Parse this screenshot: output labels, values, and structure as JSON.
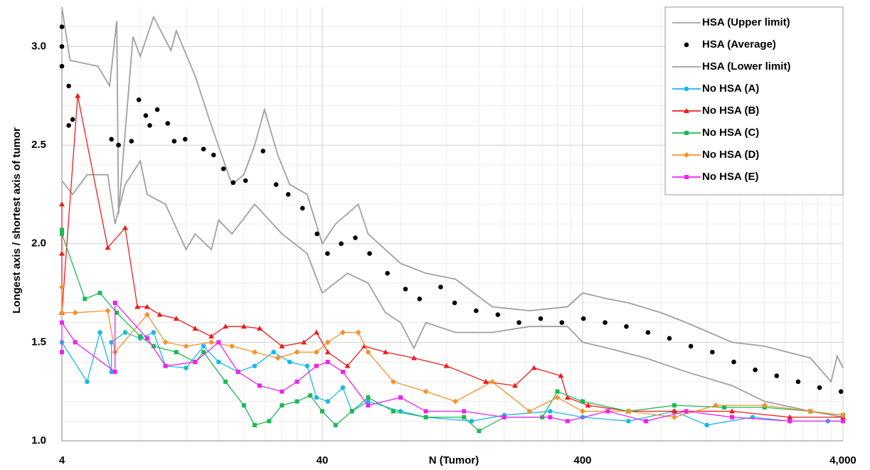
{
  "chart_data": {
    "type": "line",
    "x_label": "N (Tumor)",
    "y_label": "Longest axis / shortest axis of tumor",
    "xscale": "log",
    "grid": true,
    "minor_grid": true,
    "legend": "upper right",
    "xlim": [
      4,
      4000
    ],
    "xticks": [
      4,
      40,
      400,
      {
        "value": 4000,
        "label": "4,000"
      }
    ],
    "ylim": [
      1.0,
      3.2
    ],
    "yticks": [
      {
        "value": 1.0,
        "label": "1.0"
      },
      {
        "value": 1.5,
        "label": "1.5"
      },
      {
        "value": 2.0,
        "label": "2.0"
      },
      {
        "value": 2.5,
        "label": "2.5"
      },
      {
        "value": 3.0,
        "label": "3.0"
      }
    ],
    "series": [
      {
        "name": "HSA (Upper limit)",
        "color": "#a0a0a0",
        "marker": "none",
        "line": true,
        "x": [
          4,
          4.3,
          5.5,
          6.1,
          6.5,
          6.6,
          7.5,
          8,
          9,
          10.5,
          11,
          13,
          15,
          18,
          20,
          22,
          24,
          27,
          30,
          35,
          40,
          45,
          55,
          60,
          80,
          100,
          130,
          180,
          250,
          350,
          400,
          500,
          600,
          800,
          1000,
          1500,
          2000,
          3000,
          3600,
          3800,
          4000
        ],
        "values": [
          3.2,
          2.93,
          2.9,
          2.8,
          3.13,
          2.15,
          3.05,
          2.95,
          3.15,
          2.98,
          3.08,
          2.85,
          2.6,
          2.3,
          2.35,
          2.5,
          2.68,
          2.45,
          2.3,
          2.25,
          2.0,
          2.1,
          2.2,
          2.05,
          1.9,
          1.85,
          1.82,
          1.68,
          1.66,
          1.68,
          1.75,
          1.72,
          1.7,
          1.65,
          1.6,
          1.5,
          1.48,
          1.42,
          1.3,
          1.43,
          1.37
        ]
      },
      {
        "name": "HSA (Average)",
        "color": "#000000",
        "marker": "circle",
        "line": false,
        "x": [
          4,
          4,
          4,
          4.25,
          4.25,
          4.4,
          6.2,
          6.6,
          7.4,
          7.9,
          8.4,
          8.7,
          9.3,
          10.2,
          10.8,
          11.9,
          14,
          15.3,
          16.7,
          18.2,
          20.3,
          23.7,
          26.6,
          29.6,
          33.6,
          38.2,
          41.9,
          47.3,
          53.6,
          60.8,
          71.2,
          83.5,
          94.6,
          114,
          129,
          156,
          189,
          228,
          276,
          333,
          403,
          488,
          589,
          713,
          862,
          1042,
          1260,
          1523,
          1841,
          2226,
          2691,
          3253,
          3931
        ],
        "values": [
          3.1,
          3.0,
          2.9,
          2.8,
          2.6,
          2.63,
          2.53,
          2.5,
          2.52,
          2.73,
          2.65,
          2.6,
          2.68,
          2.61,
          2.52,
          2.53,
          2.48,
          2.45,
          2.38,
          2.31,
          2.32,
          2.47,
          2.3,
          2.25,
          2.18,
          2.05,
          1.95,
          2.0,
          2.03,
          1.95,
          1.85,
          1.77,
          1.72,
          1.78,
          1.7,
          1.66,
          1.64,
          1.6,
          1.62,
          1.6,
          1.62,
          1.6,
          1.58,
          1.55,
          1.52,
          1.48,
          1.45,
          1.4,
          1.36,
          1.33,
          1.3,
          1.27,
          1.25
        ]
      },
      {
        "name": "HSA (Lower limit)",
        "color": "#a0a0a0",
        "marker": "none",
        "line": true,
        "x": [
          4,
          4.4,
          5,
          6,
          6.4,
          7,
          8,
          8.5,
          10,
          12,
          13,
          15,
          16,
          18,
          22,
          28,
          35,
          40,
          50,
          60,
          70,
          80,
          90,
          100,
          130,
          180,
          250,
          350,
          400,
          500,
          700,
          1000,
          1500,
          2000,
          3000,
          4000
        ],
        "values": [
          2.32,
          2.25,
          2.35,
          2.35,
          2.1,
          2.3,
          2.42,
          2.25,
          2.2,
          1.97,
          2.05,
          1.97,
          2.12,
          2.05,
          2.2,
          2.05,
          1.95,
          1.75,
          1.85,
          1.8,
          1.65,
          1.6,
          1.47,
          1.6,
          1.55,
          1.55,
          1.58,
          1.58,
          1.5,
          1.47,
          1.42,
          1.35,
          1.28,
          1.2,
          1.15,
          1.12
        ]
      },
      {
        "name": "No HSA (A)",
        "color": "#1ab8e8",
        "marker": "circle",
        "line": true,
        "x": [
          4,
          4,
          5,
          5.6,
          6.2,
          6.2,
          7,
          8,
          9,
          10,
          12,
          14,
          16,
          19,
          22,
          26,
          30,
          35,
          38,
          42,
          48,
          52,
          60,
          80,
          100,
          150,
          200,
          300,
          400,
          600,
          900,
          1200,
          1800,
          2500,
          3500,
          4000
        ],
        "values": [
          1.45,
          1.5,
          1.3,
          1.55,
          1.35,
          1.5,
          1.55,
          1.52,
          1.55,
          1.38,
          1.37,
          1.48,
          1.4,
          1.35,
          1.38,
          1.45,
          1.4,
          1.38,
          1.22,
          1.2,
          1.27,
          1.15,
          1.2,
          1.15,
          1.12,
          1.1,
          1.13,
          1.15,
          1.12,
          1.1,
          1.15,
          1.08,
          1.12,
          1.1,
          1.1,
          1.1
        ]
      },
      {
        "name": "No HSA (B)",
        "color": "#ee1c1c",
        "marker": "triangle",
        "line": true,
        "x": [
          4,
          4,
          4,
          4.6,
          6,
          7,
          7.8,
          8.5,
          9.5,
          11,
          13,
          15,
          17,
          20,
          23,
          28,
          34,
          38,
          42,
          50,
          58,
          70,
          90,
          120,
          170,
          220,
          260,
          330,
          350,
          420,
          600,
          900,
          1500,
          2500,
          4000
        ],
        "values": [
          2.2,
          1.95,
          1.65,
          2.75,
          1.98,
          2.08,
          1.68,
          1.68,
          1.64,
          1.62,
          1.57,
          1.53,
          1.58,
          1.58,
          1.57,
          1.48,
          1.5,
          1.55,
          1.45,
          1.38,
          1.48,
          1.45,
          1.42,
          1.38,
          1.3,
          1.28,
          1.37,
          1.33,
          1.22,
          1.18,
          1.15,
          1.15,
          1.15,
          1.12,
          1.12
        ]
      },
      {
        "name": "No HSA (C)",
        "color": "#1db954",
        "marker": "square",
        "line": true,
        "x": [
          4,
          4,
          4.9,
          5.6,
          6.5,
          8,
          9,
          11,
          13,
          14,
          17,
          20,
          22,
          25,
          28,
          32,
          36,
          40,
          45,
          52,
          60,
          75,
          100,
          140,
          160,
          200,
          280,
          320,
          400,
          600,
          900,
          1400,
          2000,
          3000,
          4000
        ],
        "values": [
          2.07,
          2.05,
          1.72,
          1.75,
          1.65,
          1.53,
          1.48,
          1.45,
          1.4,
          1.45,
          1.3,
          1.18,
          1.08,
          1.1,
          1.18,
          1.2,
          1.23,
          1.15,
          1.08,
          1.15,
          1.22,
          1.15,
          1.12,
          1.12,
          1.05,
          1.12,
          1.12,
          1.25,
          1.2,
          1.15,
          1.18,
          1.17,
          1.17,
          1.15,
          1.13
        ]
      },
      {
        "name": "No HSA (D)",
        "color": "#f7902c",
        "marker": "diamond",
        "line": true,
        "x": [
          4,
          4,
          4.5,
          6,
          6.4,
          8.5,
          10,
          12,
          15,
          18,
          22,
          27,
          32,
          38,
          42,
          48,
          55,
          60,
          75,
          100,
          130,
          180,
          250,
          320,
          400,
          600,
          900,
          1300,
          2000,
          3000,
          4000
        ],
        "values": [
          1.78,
          1.65,
          1.65,
          1.66,
          1.45,
          1.64,
          1.5,
          1.48,
          1.5,
          1.48,
          1.45,
          1.42,
          1.45,
          1.45,
          1.5,
          1.55,
          1.55,
          1.45,
          1.3,
          1.25,
          1.2,
          1.3,
          1.15,
          1.22,
          1.15,
          1.15,
          1.12,
          1.18,
          1.18,
          1.15,
          1.13
        ]
      },
      {
        "name": "No HSA (E)",
        "color": "#ee22ee",
        "marker": "square",
        "line": true,
        "x": [
          4,
          4,
          4.5,
          6.4,
          6.4,
          8.5,
          10,
          13,
          16,
          19,
          23,
          28,
          32,
          38,
          42,
          48,
          60,
          80,
          100,
          140,
          200,
          300,
          350,
          500,
          700,
          1000,
          1500,
          2500,
          4000
        ],
        "values": [
          1.45,
          1.6,
          1.5,
          1.35,
          1.7,
          1.52,
          1.38,
          1.4,
          1.5,
          1.35,
          1.28,
          1.25,
          1.3,
          1.38,
          1.4,
          1.35,
          1.18,
          1.22,
          1.15,
          1.15,
          1.12,
          1.12,
          1.1,
          1.15,
          1.1,
          1.15,
          1.12,
          1.1,
          1.1
        ]
      }
    ]
  }
}
